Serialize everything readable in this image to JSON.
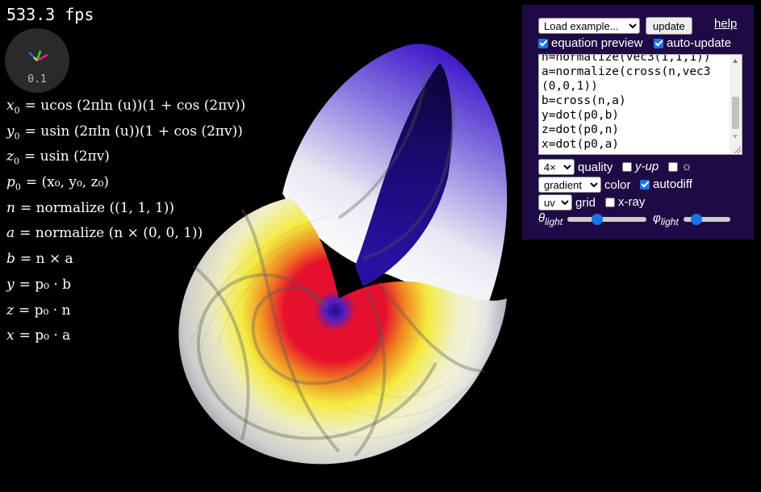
{
  "hud": {
    "fps": "533.3 fps",
    "zoom": "0.1"
  },
  "equations": [
    {
      "lhs_var": "x",
      "lhs_sub": "0",
      "rhs": "= ucos (2πln (u))(1 + cos (2πv))"
    },
    {
      "lhs_var": "y",
      "lhs_sub": "0",
      "rhs": "= usin (2πln (u))(1 + cos (2πv))"
    },
    {
      "lhs_var": "z",
      "lhs_sub": "0",
      "rhs": "= usin (2πv)"
    },
    {
      "lhs_var": "p",
      "lhs_sub": "0",
      "rhs": "= (x₀, y₀, z₀)"
    },
    {
      "lhs_var": "n",
      "lhs_sub": "",
      "rhs": "= normalize ((1, 1, 1))"
    },
    {
      "lhs_var": "a",
      "lhs_sub": "",
      "rhs": "= normalize (n × (0, 0, 1))"
    },
    {
      "lhs_var": "b",
      "lhs_sub": "",
      "rhs": "= n × a"
    },
    {
      "lhs_var": "y",
      "lhs_sub": "",
      "rhs": "= p₀ · b"
    },
    {
      "lhs_var": "z",
      "lhs_sub": "",
      "rhs": "= p₀ · n"
    },
    {
      "lhs_var": "x",
      "lhs_sub": "",
      "rhs": "= p₀ · a"
    }
  ],
  "panel": {
    "example_select": "Load example...",
    "update_label": "update",
    "help_label": "help",
    "equation_preview_label": "equation preview",
    "equation_preview_checked": true,
    "auto_update_label": "auto-update",
    "auto_update_checked": true,
    "code": "n=normalize(vec3(1,1,1))\na=normalize(cross(n,vec3\n(0,0,1))\nb=cross(n,a)\ny=dot(p0,b)\nz=dot(p0,n)\nx=dot(p0,a)",
    "quality_select": "4×",
    "quality_label": "quality",
    "yup_label": "y-up",
    "yup_checked": false,
    "light_label": "☼",
    "light_checked": false,
    "color_select": "gradient",
    "color_label": "color",
    "autodiff_label": "autodiff",
    "autodiff_checked": true,
    "grid_select": "uv",
    "grid_label": "grid",
    "xray_label": "x-ray",
    "xray_checked": false,
    "theta_symbol": "θ",
    "phi_symbol": "φ",
    "light_sub": "light",
    "theta_value": 0.35,
    "phi_value": 0.2
  },
  "colors": {
    "panel_bg": "#1e0b45",
    "accent": "#1a73e8"
  }
}
